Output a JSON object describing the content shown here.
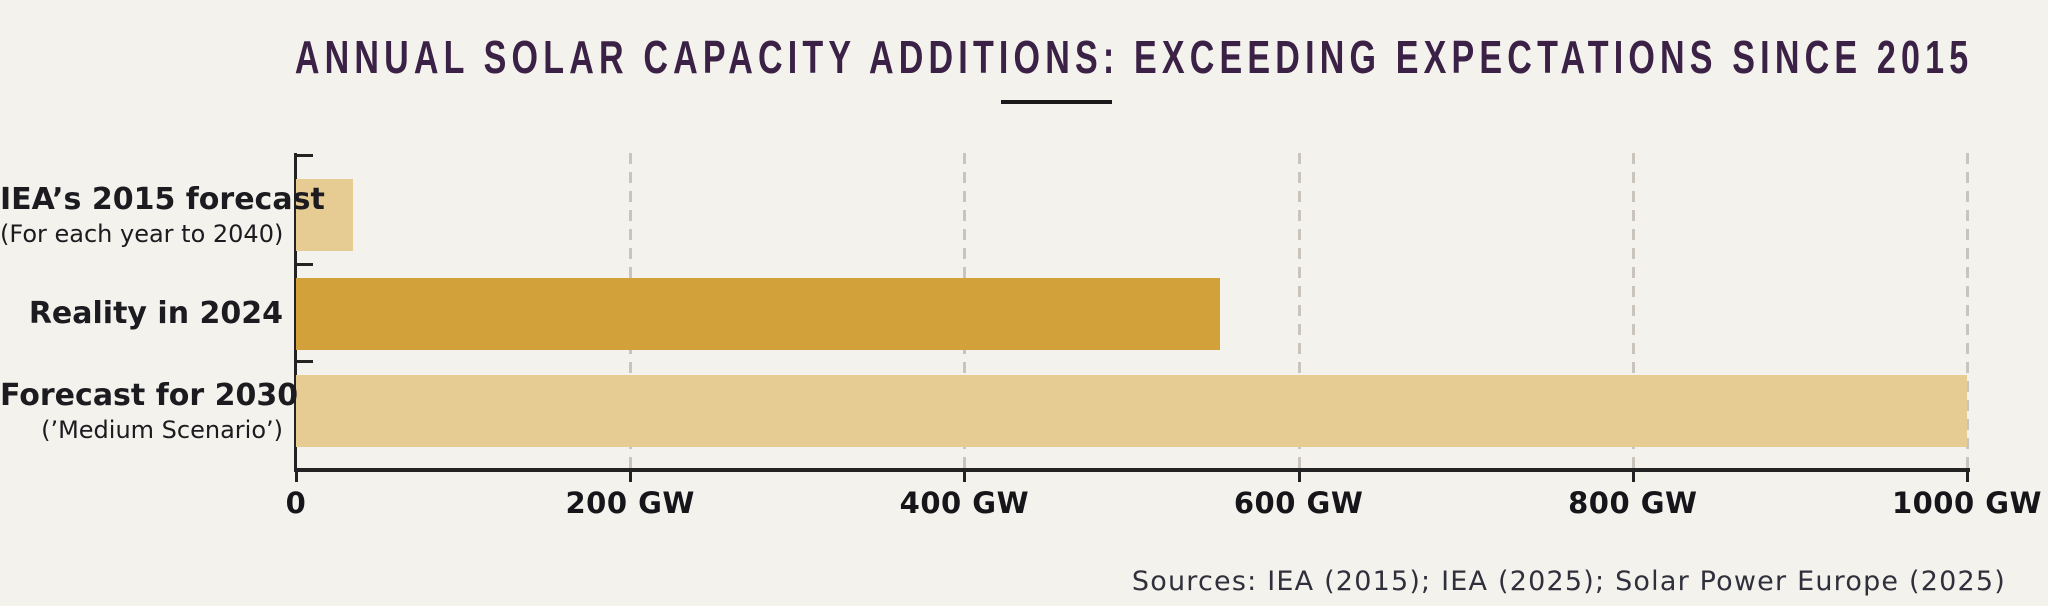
{
  "title": "ANNUAL SOLAR CAPACITY ADDITIONS: EXCEEDING EXPECTATIONS SINCE 2015",
  "source": "Sources: IEA (2015); IEA (2025); Solar Power Europe (2025)",
  "colors": {
    "background": "#f3f2ec",
    "title": "#3a2145",
    "axis": "#232323",
    "gridline": "#c9c5bc",
    "label_text": "#1b1b20",
    "tick_text": "#15151a",
    "source_text": "#30303c",
    "bar_gold": "#d3a139",
    "bar_tan": "#e6cb92"
  },
  "chart_data": {
    "type": "bar",
    "orientation": "horizontal",
    "title": "ANNUAL SOLAR CAPACITY ADDITIONS: EXCEEDING EXPECTATIONS SINCE 2015",
    "unit": "GW",
    "xlim": [
      0,
      1000
    ],
    "grid": "vertical-dashed",
    "legend": "none",
    "categories": [
      {
        "label": "IEA’s 2015 forecast",
        "sublabel": "(For each year to 2040)"
      },
      {
        "label": "Reality in 2024",
        "sublabel": ""
      },
      {
        "label": "Forecast for 2030",
        "sublabel": "(’Medium Scenario’)"
      }
    ],
    "values": [
      34,
      553,
      1000
    ],
    "bar_colors": [
      "#e6cb92",
      "#d3a139",
      "#e6cb92"
    ],
    "x_ticks": [
      {
        "value": 0,
        "label": "0"
      },
      {
        "value": 200,
        "label": "200 GW"
      },
      {
        "value": 400,
        "label": "400 GW"
      },
      {
        "value": 600,
        "label": "600 GW"
      },
      {
        "value": 800,
        "label": "800 GW"
      },
      {
        "value": 1000,
        "label": "1000 GW"
      }
    ],
    "source": "Sources: IEA (2015); IEA (2025); Solar Power Europe (2025)"
  }
}
